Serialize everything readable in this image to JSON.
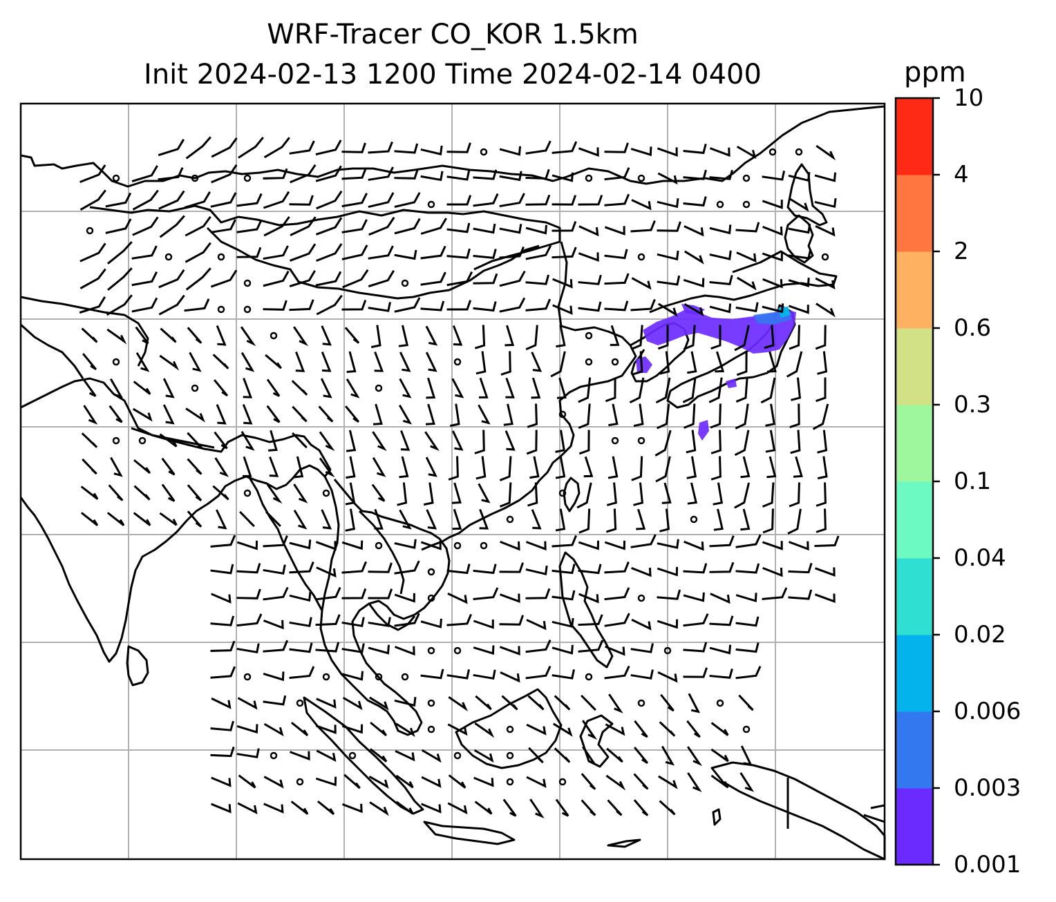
{
  "title": {
    "line1": "WRF-Tracer CO_KOR 1.5km",
    "line2": "Init 2024-02-13 1200 Time 2024-02-14 0400"
  },
  "colorbar": {
    "unit": "ppm",
    "levels": [
      "0.001",
      "0.003",
      "0.006",
      "0.02",
      "0.04",
      "0.1",
      "0.3",
      "0.6",
      "2",
      "4",
      "10"
    ],
    "colors": [
      "#6b2bff",
      "#3478f0",
      "#05b3ec",
      "#2fe0d2",
      "#6cf9c2",
      "#9ef79c",
      "#d2e185",
      "#feb160",
      "#ff7640",
      "#ff2a16"
    ]
  },
  "map": {
    "features": [
      "coastlines",
      "country-borders",
      "gridlines",
      "wind-barbs",
      "tracer-plume"
    ],
    "plume_color": "#6b2bff",
    "plume_region": "Korea and Sea of Japan",
    "grid_color": "#b0b0b0"
  }
}
